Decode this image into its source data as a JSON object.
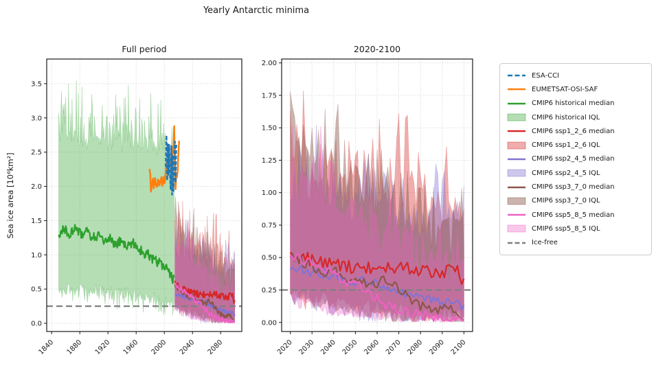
{
  "chart_data": {
    "type": "line",
    "figure_title": "Yearly Antarctic minima",
    "ylabel": "Sea ice area [10⁶km²]",
    "grid": true,
    "legend_position": "right",
    "ice_free_level": 0.25,
    "series_defs": {
      "esa_cci": {
        "label": "ESA-CCI",
        "type": "line",
        "color": "#1f77b4",
        "dash": [
          5,
          3
        ],
        "width": 2.5,
        "range": [
          2002,
          2017
        ],
        "noise": 0.05,
        "anchors": [
          [
            2002,
            2.3
          ],
          [
            2003,
            2.7
          ],
          [
            2004,
            2.05
          ],
          [
            2005,
            2.6
          ],
          [
            2006,
            2.15
          ],
          [
            2007,
            2.65
          ],
          [
            2008,
            2.2
          ],
          [
            2009,
            1.95
          ],
          [
            2010,
            2.55
          ],
          [
            2011,
            1.9
          ],
          [
            2012,
            2.5
          ],
          [
            2013,
            1.95
          ],
          [
            2014,
            2.45
          ],
          [
            2015,
            2.7
          ],
          [
            2016,
            2.1
          ],
          [
            2017,
            2.65
          ]
        ]
      },
      "eumetsat": {
        "label": "EUMETSAT-OSI-SAF",
        "type": "line",
        "color": "#ff7f0e",
        "width": 2.5,
        "range": [
          1979,
          2021
        ],
        "noise": 0.07,
        "anchors": [
          [
            1979,
            2.25
          ],
          [
            1981,
            1.97
          ],
          [
            1983,
            2.12
          ],
          [
            1985,
            2.0
          ],
          [
            1987,
            2.18
          ],
          [
            1989,
            2.02
          ],
          [
            1991,
            2.12
          ],
          [
            1993,
            2.04
          ],
          [
            1995,
            2.15
          ],
          [
            1997,
            2.02
          ],
          [
            1999,
            2.1
          ],
          [
            2001,
            2.06
          ],
          [
            2003,
            2.28
          ],
          [
            2005,
            2.14
          ],
          [
            2007,
            2.5
          ],
          [
            2009,
            2.3
          ],
          [
            2011,
            2.42
          ],
          [
            2013,
            2.6
          ],
          [
            2014,
            2.88
          ],
          [
            2015,
            2.3
          ],
          [
            2016,
            2.02
          ],
          [
            2017,
            2.22
          ],
          [
            2018,
            2.12
          ],
          [
            2019,
            2.3
          ],
          [
            2020,
            2.55
          ],
          [
            2021,
            2.7
          ]
        ]
      },
      "hist_median": {
        "label": "CMIP6 historical median",
        "type": "line",
        "color": "#2ca02c",
        "width": 2.2,
        "range": [
          1850,
          2014
        ],
        "noise": 0.07,
        "anchors": [
          [
            1850,
            1.3
          ],
          [
            1858,
            1.38
          ],
          [
            1866,
            1.3
          ],
          [
            1874,
            1.42
          ],
          [
            1882,
            1.28
          ],
          [
            1890,
            1.33
          ],
          [
            1898,
            1.25
          ],
          [
            1906,
            1.28
          ],
          [
            1914,
            1.18
          ],
          [
            1922,
            1.25
          ],
          [
            1930,
            1.15
          ],
          [
            1938,
            1.2
          ],
          [
            1946,
            1.12
          ],
          [
            1954,
            1.18
          ],
          [
            1962,
            1.12
          ],
          [
            1970,
            1.02
          ],
          [
            1978,
            1.0
          ],
          [
            1986,
            0.92
          ],
          [
            1994,
            0.88
          ],
          [
            2002,
            0.82
          ],
          [
            2008,
            0.72
          ],
          [
            2014,
            0.62
          ]
        ]
      },
      "hist_iql": {
        "label": "CMIP6 historical IQL",
        "type": "band",
        "color": "#2ca02c",
        "alpha": 0.35,
        "range": [
          1850,
          2014
        ],
        "upper": {
          "anchors": [
            [
              1850,
              2.6
            ],
            [
              1870,
              2.7
            ],
            [
              1890,
              2.6
            ],
            [
              1910,
              2.65
            ],
            [
              1930,
              2.6
            ],
            [
              1950,
              2.6
            ],
            [
              1970,
              2.6
            ],
            [
              1990,
              2.55
            ],
            [
              2005,
              2.45
            ],
            [
              2014,
              2.05
            ]
          ],
          "noise": 0.12,
          "spike": 0.85
        },
        "lower": {
          "anchors": [
            [
              1850,
              0.52
            ],
            [
              1900,
              0.5
            ],
            [
              1950,
              0.45
            ],
            [
              1990,
              0.38
            ],
            [
              2014,
              0.3
            ]
          ],
          "noise": 0.08,
          "spike": 0.25,
          "min": 0.12
        }
      },
      "ssp126_median": {
        "label": "CMIP6 ssp1_2_6 median",
        "type": "line",
        "color": "#d62728",
        "width": 2.2,
        "range": [
          2015,
          2100
        ],
        "noise": 0.05,
        "anchors": [
          [
            2015,
            0.58
          ],
          [
            2022,
            0.52
          ],
          [
            2030,
            0.48
          ],
          [
            2040,
            0.45
          ],
          [
            2050,
            0.42
          ],
          [
            2060,
            0.43
          ],
          [
            2070,
            0.42
          ],
          [
            2080,
            0.41
          ],
          [
            2090,
            0.38
          ],
          [
            2097,
            0.42
          ],
          [
            2100,
            0.29
          ]
        ]
      },
      "ssp126_iql": {
        "label": "CMIP6 ssp1_2_6 IQL",
        "type": "band",
        "color": "#d62728",
        "alpha": 0.38,
        "range": [
          2015,
          2100
        ],
        "upper": {
          "anchors": [
            [
              2015,
              1.05
            ],
            [
              2030,
              1.1
            ],
            [
              2050,
              1.0
            ],
            [
              2070,
              0.95
            ],
            [
              2100,
              0.85
            ]
          ],
          "noise": 0.18,
          "spike": 0.6,
          "max": 1.93
        },
        "lower": {
          "anchors": [
            [
              2015,
              0.28
            ],
            [
              2040,
              0.18
            ],
            [
              2070,
              0.1
            ],
            [
              2100,
              0.06
            ]
          ],
          "noise": 0.05,
          "spike": 0.12,
          "min": 0.01
        }
      },
      "ssp245_median": {
        "label": "CMIP6 ssp2_4_5 median",
        "type": "line",
        "color": "#8273d2",
        "width": 2.2,
        "range": [
          2015,
          2100
        ],
        "noise": 0.04,
        "anchors": [
          [
            2015,
            0.44
          ],
          [
            2025,
            0.4
          ],
          [
            2035,
            0.38
          ],
          [
            2045,
            0.34
          ],
          [
            2055,
            0.31
          ],
          [
            2065,
            0.28
          ],
          [
            2075,
            0.2
          ],
          [
            2085,
            0.17
          ],
          [
            2095,
            0.15
          ],
          [
            2100,
            0.13
          ]
        ]
      },
      "ssp245_iql": {
        "label": "CMIP6 ssp2_4_5 IQL",
        "type": "band",
        "color": "#8273d2",
        "alpha": 0.4,
        "range": [
          2015,
          2100
        ],
        "upper": {
          "anchors": [
            [
              2015,
              1.05
            ],
            [
              2030,
              1.0
            ],
            [
              2050,
              0.9
            ],
            [
              2070,
              0.8
            ],
            [
              2100,
              0.7
            ]
          ],
          "noise": 0.15,
          "spike": 0.5,
          "max": 1.93
        },
        "lower": {
          "anchors": [
            [
              2015,
              0.25
            ],
            [
              2040,
              0.14
            ],
            [
              2070,
              0.07
            ],
            [
              2100,
              0.03
            ]
          ],
          "noise": 0.05,
          "spike": 0.1,
          "min": 0.01
        }
      },
      "ssp370_median": {
        "label": "CMIP6 ssp3_7_0 median",
        "type": "line",
        "color": "#8c564b",
        "width": 2.2,
        "range": [
          2015,
          2100
        ],
        "noise": 0.045,
        "anchors": [
          [
            2015,
            0.56
          ],
          [
            2022,
            0.5
          ],
          [
            2028,
            0.45
          ],
          [
            2035,
            0.4
          ],
          [
            2042,
            0.38
          ],
          [
            2050,
            0.32
          ],
          [
            2058,
            0.3
          ],
          [
            2066,
            0.33
          ],
          [
            2072,
            0.25
          ],
          [
            2078,
            0.15
          ],
          [
            2085,
            0.11
          ],
          [
            2092,
            0.1
          ],
          [
            2100,
            0.05
          ]
        ]
      },
      "ssp370_iql": {
        "label": "CMIP6 ssp3_7_0 IQL",
        "type": "band",
        "color": "#8c564b",
        "alpha": 0.45,
        "range": [
          2015,
          2100
        ],
        "upper": {
          "anchors": [
            [
              2015,
              1.35
            ],
            [
              2025,
              1.3
            ],
            [
              2035,
              1.2
            ],
            [
              2050,
              1.05
            ],
            [
              2065,
              0.9
            ],
            [
              2080,
              0.75
            ],
            [
              2100,
              0.6
            ]
          ],
          "noise": 0.18,
          "spike": 0.55,
          "max": 1.93
        },
        "lower": {
          "anchors": [
            [
              2015,
              0.26
            ],
            [
              2040,
              0.13
            ],
            [
              2070,
              0.05
            ],
            [
              2100,
              0.02
            ]
          ],
          "noise": 0.04,
          "spike": 0.08,
          "min": 0.008
        }
      },
      "ssp585_median": {
        "label": "CMIP6 ssp5_8_5 median",
        "type": "line",
        "color": "#ed62c2",
        "width": 2.2,
        "range": [
          2015,
          2100
        ],
        "noise": 0.04,
        "anchors": [
          [
            2015,
            0.58
          ],
          [
            2022,
            0.5
          ],
          [
            2030,
            0.46
          ],
          [
            2038,
            0.4
          ],
          [
            2045,
            0.32
          ],
          [
            2052,
            0.27
          ],
          [
            2058,
            0.2
          ],
          [
            2064,
            0.14
          ],
          [
            2070,
            0.1
          ],
          [
            2076,
            0.07
          ],
          [
            2082,
            0.05
          ],
          [
            2090,
            0.03
          ],
          [
            2100,
            0.02
          ]
        ],
        "min": 0.012
      },
      "ssp585_iql": {
        "label": "CMIP6 ssp5_8_5 IQL",
        "type": "band",
        "color": "#ed62c2",
        "alpha": 0.35,
        "range": [
          2015,
          2100
        ],
        "upper": {
          "anchors": [
            [
              2015,
              1.1
            ],
            [
              2030,
              1.0
            ],
            [
              2045,
              0.85
            ],
            [
              2060,
              0.65
            ],
            [
              2075,
              0.5
            ],
            [
              2100,
              0.35
            ]
          ],
          "noise": 0.15,
          "spike": 0.45,
          "max": 1.93
        },
        "lower": {
          "anchors": [
            [
              2015,
              0.24
            ],
            [
              2040,
              0.1
            ],
            [
              2070,
              0.03
            ],
            [
              2100,
              0.01
            ]
          ],
          "noise": 0.03,
          "spike": 0.06,
          "min": 0.005
        }
      },
      "icefree": {
        "label": "Ice-free",
        "type": "hline",
        "y": 0.25,
        "color": "#7f7f7f",
        "dash": [
          9,
          5
        ],
        "width": 2.2
      }
    },
    "subplots": [
      {
        "id": "full-period",
        "title": "Full period",
        "xlim": [
          1833,
          2110
        ],
        "ylim": [
          -0.12,
          3.86
        ],
        "xticks": [
          "1840",
          "1880",
          "1920",
          "1960",
          "2000",
          "2040",
          "2080"
        ],
        "yticks": [
          "0.0",
          "0.5",
          "1.0",
          "1.5",
          "2.0",
          "2.5",
          "3.0",
          "3.5"
        ],
        "series": [
          "hist_iql",
          "ssp126_iql",
          "ssp245_iql",
          "ssp370_iql",
          "ssp585_iql",
          "icefree",
          "hist_median",
          "ssp126_median",
          "ssp245_median",
          "ssp370_median",
          "ssp585_median",
          "eumetsat",
          "esa_cci"
        ]
      },
      {
        "id": "late-century",
        "title": "2020-2100",
        "start_year": 2020,
        "xlim": [
          2016,
          2104
        ],
        "ylim": [
          -0.07,
          2.03
        ],
        "xticks": [
          "2020",
          "2030",
          "2040",
          "2050",
          "2060",
          "2070",
          "2080",
          "2090",
          "2100"
        ],
        "yticks": [
          "0.00",
          "0.25",
          "0.50",
          "0.75",
          "1.00",
          "1.25",
          "1.50",
          "1.75",
          "2.00"
        ],
        "series": [
          "ssp126_iql",
          "ssp245_iql",
          "ssp370_iql",
          "ssp585_iql",
          "icefree",
          "ssp126_median",
          "ssp245_median",
          "ssp370_median",
          "ssp585_median"
        ]
      }
    ]
  },
  "legend": {
    "items": [
      {
        "label": "ESA-CCI",
        "swatch": "dashed-line",
        "color": "#1f77b4"
      },
      {
        "label": "EUMETSAT-OSI-SAF",
        "swatch": "line",
        "color": "#ff7f0e"
      },
      {
        "label": "CMIP6 historical median",
        "swatch": "line",
        "color": "#2ca02c"
      },
      {
        "label": "CMIP6 historical IQL",
        "swatch": "patch",
        "color": "#2ca02c",
        "alpha": 0.35
      },
      {
        "label": "CMIP6 ssp1_2_6 median",
        "swatch": "line",
        "color": "#d62728"
      },
      {
        "label": "CMIP6 ssp1_2_6 IQL",
        "swatch": "patch",
        "color": "#d62728",
        "alpha": 0.38
      },
      {
        "label": "CMIP6 ssp2_4_5 median",
        "swatch": "line",
        "color": "#8273d2"
      },
      {
        "label": "CMIP6 ssp2_4_5 IQL",
        "swatch": "patch",
        "color": "#8273d2",
        "alpha": 0.4
      },
      {
        "label": "CMIP6 ssp3_7_0 median",
        "swatch": "line",
        "color": "#8c564b"
      },
      {
        "label": "CMIP6 ssp3_7_0 IQL",
        "swatch": "patch",
        "color": "#8c564b",
        "alpha": 0.45
      },
      {
        "label": "CMIP6 ssp5_8_5 median",
        "swatch": "line",
        "color": "#ed62c2"
      },
      {
        "label": "CMIP6 ssp5_8_5 IQL",
        "swatch": "patch",
        "color": "#ed62c2",
        "alpha": 0.35
      },
      {
        "label": "Ice-free",
        "swatch": "dashed-line",
        "color": "#7f7f7f"
      }
    ]
  }
}
